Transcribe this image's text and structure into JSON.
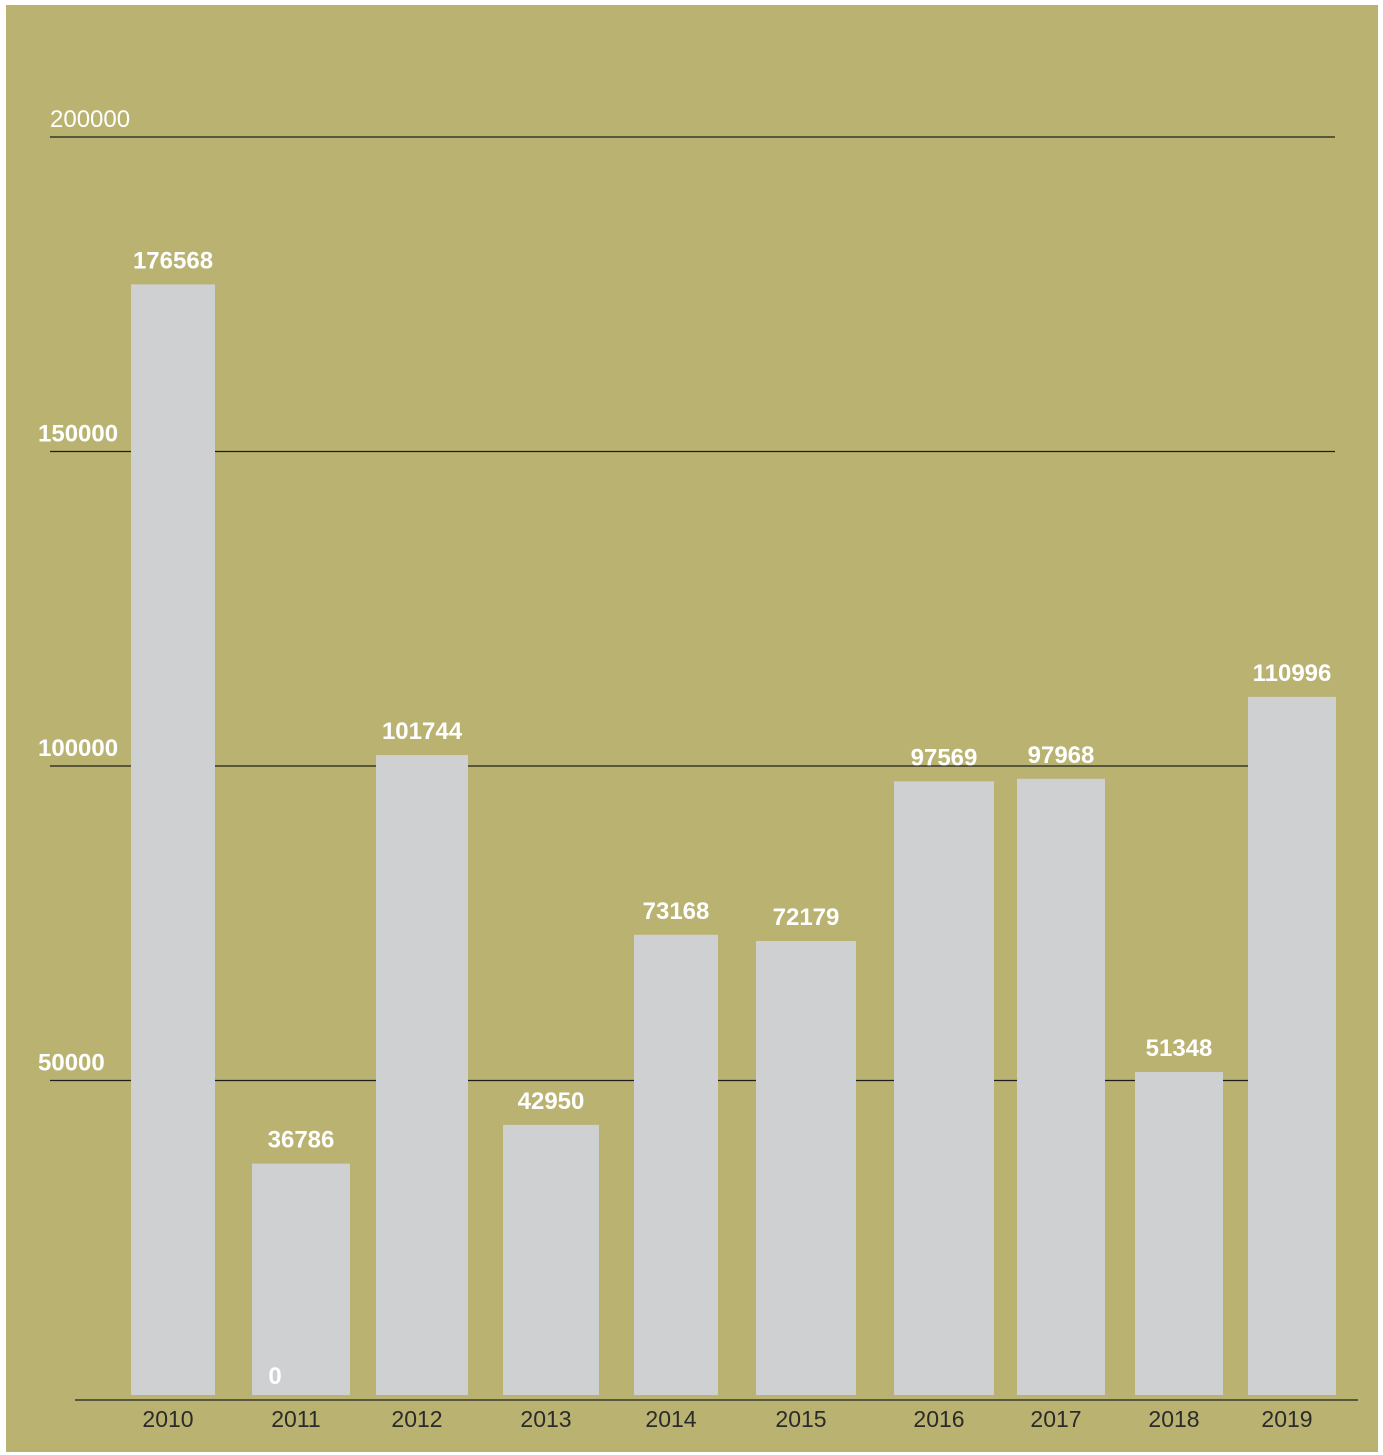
{
  "chart_data": {
    "type": "bar",
    "categories": [
      "2010",
      "2011",
      "2012",
      "2013",
      "2014",
      "2015",
      "2016",
      "2017",
      "2018",
      "2019"
    ],
    "values": [
      176568,
      36786,
      101744,
      42950,
      73168,
      72179,
      97569,
      97968,
      51348,
      110996
    ],
    "data_labels": [
      "176568",
      "36786",
      "101744",
      "42950",
      "73168",
      "72179",
      "97569",
      "97968",
      "51348",
      "110996"
    ],
    "yticks": [
      {
        "value": 200000,
        "label": "200000",
        "bold": false
      },
      {
        "value": 150000,
        "label": "150000",
        "bold": true
      },
      {
        "value": 100000,
        "label": "100000",
        "bold": true
      },
      {
        "value": 50000,
        "label": "50000",
        "bold": true
      }
    ],
    "baseline_label": "0",
    "title": "",
    "xlabel": "",
    "ylabel": "",
    "ylim": [
      0,
      200000
    ],
    "grid": true,
    "legend": "none"
  },
  "colors": {
    "background": "#b9b271",
    "bar": "#cfd0d2",
    "tree": "#3c3d3f",
    "gridline": "#1f1f1f",
    "data_label": "#ffffff",
    "tick_label": "#2b2b2b"
  },
  "icons": {
    "bar_decoration": "tree-silhouette-icon"
  }
}
